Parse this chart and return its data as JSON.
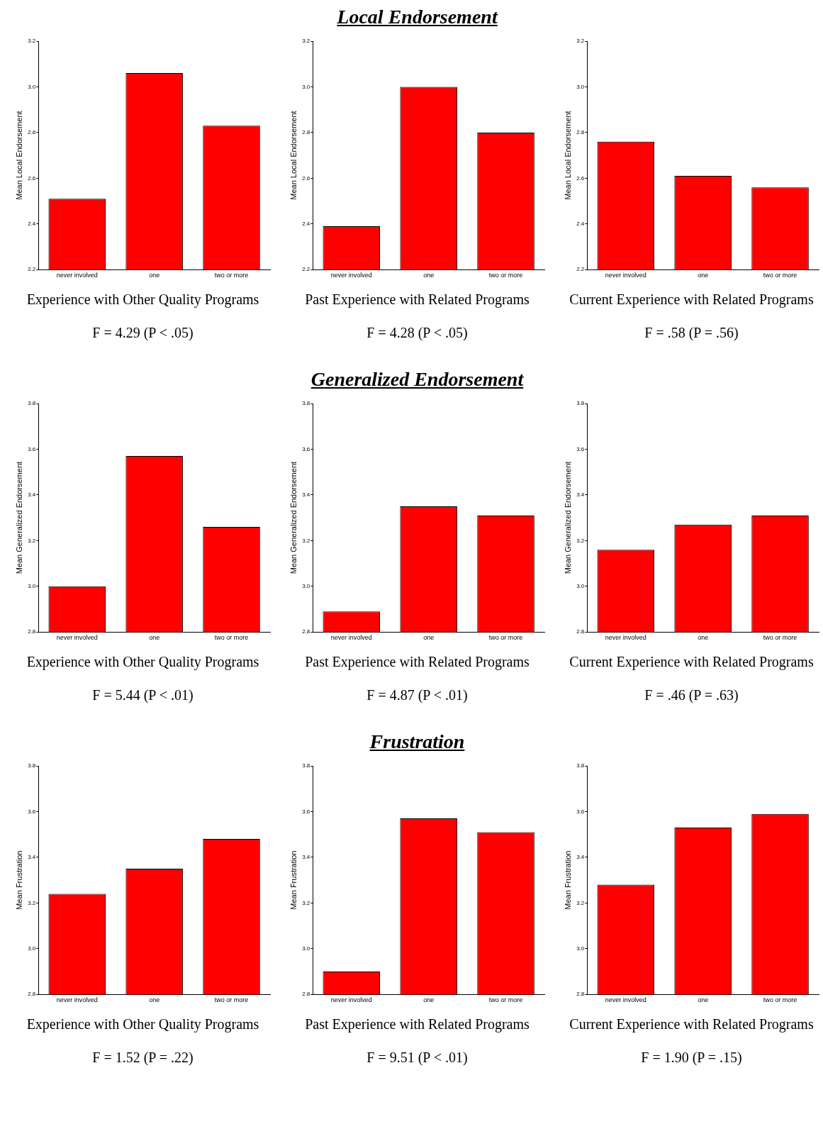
{
  "chart_data": [
    {
      "type": "bar",
      "ylabel": "Mean Local Endorsement",
      "xlabel": "Experience with Other Quality Programs",
      "categories": [
        "never involved",
        "one",
        "two or more"
      ],
      "values": [
        2.51,
        3.06,
        2.83
      ],
      "color": "#ff0000",
      "ylim": [
        2.2,
        3.2
      ],
      "yticks": [
        {
          "value": 2.2,
          "label": "2.2"
        },
        {
          "value": 2.4,
          "label": "2.4"
        },
        {
          "value": 2.6,
          "label": "2.6"
        },
        {
          "value": 2.8,
          "label": "2.8"
        },
        {
          "value": 3.0,
          "label": "3.0"
        },
        {
          "value": 3.2,
          "label": "3.2"
        }
      ],
      "annotations": [
        "F = 4.29 (P < .05)"
      ]
    },
    {
      "type": "bar",
      "title": "Local Endorsement",
      "ylabel": "Mean Local Endorsement",
      "xlabel": "Past Experience with Related Programs",
      "categories": [
        "never involved",
        "one",
        "two or more"
      ],
      "values": [
        2.39,
        3.0,
        2.8
      ],
      "color": "#ff0000",
      "ylim": [
        2.2,
        3.2
      ],
      "yticks": [
        {
          "value": 2.2,
          "label": "2.2"
        },
        {
          "value": 2.4,
          "label": "2.4"
        },
        {
          "value": 2.6,
          "label": "2.6"
        },
        {
          "value": 2.8,
          "label": "2.8"
        },
        {
          "value": 3.0,
          "label": "3.0"
        },
        {
          "value": 3.2,
          "label": "3.2"
        }
      ],
      "annotations": [
        "F = 4.28 (P < .05)"
      ]
    },
    {
      "type": "bar",
      "ylabel": "Mean Local Endorsement",
      "xlabel": "Current Experience with Related Programs",
      "categories": [
        "never involved",
        "one",
        "two or more"
      ],
      "values": [
        2.76,
        2.61,
        2.56
      ],
      "color": "#ff0000",
      "ylim": [
        2.2,
        3.2
      ],
      "yticks": [
        {
          "value": 2.2,
          "label": "2.2"
        },
        {
          "value": 2.4,
          "label": "2.4"
        },
        {
          "value": 2.6,
          "label": "2.6"
        },
        {
          "value": 2.8,
          "label": "2.8"
        },
        {
          "value": 3.0,
          "label": "3.0"
        },
        {
          "value": 3.2,
          "label": "3.2"
        }
      ],
      "annotations": [
        "F = .58 (P = .56)"
      ]
    },
    {
      "type": "bar",
      "ylabel": "Mean Generalized Endorsement",
      "xlabel": "Experience with Other Quality Programs",
      "categories": [
        "never involved",
        "one",
        "two or more"
      ],
      "values": [
        3.0,
        3.57,
        3.26
      ],
      "color": "#ff0000",
      "ylim": [
        2.8,
        3.8
      ],
      "yticks": [
        {
          "value": 2.8,
          "label": "2.8"
        },
        {
          "value": 3.0,
          "label": "3.0"
        },
        {
          "value": 3.2,
          "label": "3.2"
        },
        {
          "value": 3.4,
          "label": "3.4"
        },
        {
          "value": 3.6,
          "label": "3.6"
        },
        {
          "value": 3.8,
          "label": "3.8"
        }
      ],
      "annotations": [
        "F = 5.44 (P < .01)"
      ]
    },
    {
      "type": "bar",
      "title": "Generalized Endorsement",
      "ylabel": "Mean Generalized Endorsement",
      "xlabel": "Past Experience with Related Programs",
      "categories": [
        "never involved",
        "one",
        "two or more"
      ],
      "values": [
        2.89,
        3.35,
        3.31
      ],
      "color": "#ff0000",
      "ylim": [
        2.8,
        3.8
      ],
      "yticks": [
        {
          "value": 2.8,
          "label": "2.8"
        },
        {
          "value": 3.0,
          "label": "3.0"
        },
        {
          "value": 3.2,
          "label": "3.2"
        },
        {
          "value": 3.4,
          "label": "3.4"
        },
        {
          "value": 3.6,
          "label": "3.6"
        },
        {
          "value": 3.8,
          "label": "3.8"
        }
      ],
      "annotations": [
        "F = 4.87 (P < .01)"
      ]
    },
    {
      "type": "bar",
      "ylabel": "Mean Generalized Endorsement",
      "xlabel": "Current Experience with Related Programs",
      "categories": [
        "never involved",
        "one",
        "two or more"
      ],
      "values": [
        3.16,
        3.27,
        3.31
      ],
      "color": "#ff0000",
      "ylim": [
        2.8,
        3.8
      ],
      "yticks": [
        {
          "value": 2.8,
          "label": "2.8"
        },
        {
          "value": 3.0,
          "label": "3.0"
        },
        {
          "value": 3.2,
          "label": "3.2"
        },
        {
          "value": 3.4,
          "label": "3.4"
        },
        {
          "value": 3.6,
          "label": "3.6"
        },
        {
          "value": 3.8,
          "label": "3.8"
        }
      ],
      "annotations": [
        "F = .46 (P = .63)"
      ]
    },
    {
      "type": "bar",
      "ylabel": "Mean Frustration",
      "xlabel": "Experience with Other Quality Programs",
      "categories": [
        "never involved",
        "one",
        "two or more"
      ],
      "values": [
        3.24,
        3.35,
        3.48
      ],
      "color": "#ff0000",
      "ylim": [
        2.8,
        3.8
      ],
      "yticks": [
        {
          "value": 2.8,
          "label": "2.8"
        },
        {
          "value": 3.0,
          "label": "3.0"
        },
        {
          "value": 3.2,
          "label": "3.2"
        },
        {
          "value": 3.4,
          "label": "3.4"
        },
        {
          "value": 3.6,
          "label": "3.6"
        },
        {
          "value": 3.8,
          "label": "3.8"
        }
      ],
      "annotations": [
        "F = 1.52 (P = .22)"
      ]
    },
    {
      "type": "bar",
      "title": "Frustration",
      "ylabel": "Mean Frustration",
      "xlabel": "Past Experience with Related Programs",
      "categories": [
        "never involved",
        "one",
        "two or more"
      ],
      "values": [
        2.9,
        3.57,
        3.51
      ],
      "color": "#ff0000",
      "ylim": [
        2.8,
        3.8
      ],
      "yticks": [
        {
          "value": 2.8,
          "label": "2.8"
        },
        {
          "value": 3.0,
          "label": "3.0"
        },
        {
          "value": 3.2,
          "label": "3.2"
        },
        {
          "value": 3.4,
          "label": "3.4"
        },
        {
          "value": 3.6,
          "label": "3.6"
        },
        {
          "value": 3.8,
          "label": "3.8"
        }
      ],
      "annotations": [
        "F = 9.51 (P < .01)"
      ]
    },
    {
      "type": "bar",
      "ylabel": "Mean Frustration",
      "xlabel": "Current Experience with Related Programs",
      "categories": [
        "never involved",
        "one",
        "two or more"
      ],
      "values": [
        3.28,
        3.53,
        3.59
      ],
      "color": "#ff0000",
      "ylim": [
        2.8,
        3.8
      ],
      "yticks": [
        {
          "value": 2.8,
          "label": "2.8"
        },
        {
          "value": 3.0,
          "label": "3.0"
        },
        {
          "value": 3.2,
          "label": "3.2"
        },
        {
          "value": 3.4,
          "label": "3.4"
        },
        {
          "value": 3.6,
          "label": "3.6"
        },
        {
          "value": 3.8,
          "label": "3.8"
        }
      ],
      "annotations": [
        "F = 1.90 (P = .15)"
      ]
    }
  ]
}
